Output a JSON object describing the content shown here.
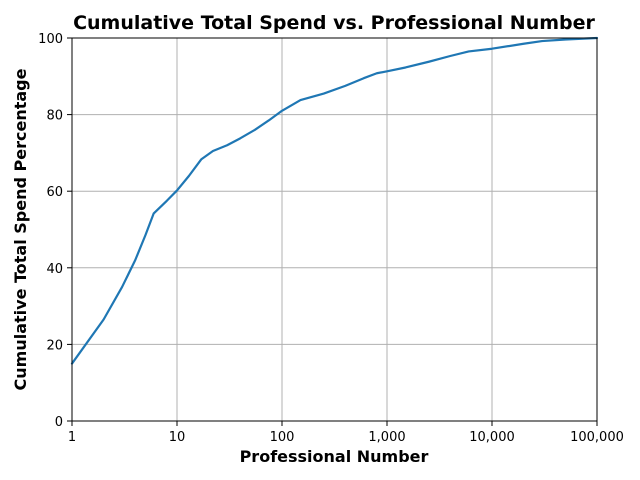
{
  "chart_data": {
    "type": "line",
    "title": "Cumulative Total Spend vs. Professional Number",
    "xlabel": "Professional Number",
    "ylabel": "Cumulative Total Spend Percentage",
    "x_scale": "log",
    "xlim": [
      1,
      100000
    ],
    "ylim": [
      0,
      100
    ],
    "grid": true,
    "x_ticks": [
      1,
      10,
      100,
      1000,
      10000,
      100000
    ],
    "x_tick_labels": [
      "1",
      "10",
      "100",
      "1,000",
      "10,000",
      "100,000"
    ],
    "y_ticks": [
      0,
      20,
      40,
      60,
      80,
      100
    ],
    "y_tick_labels": [
      "0",
      "20",
      "40",
      "60",
      "80",
      "100"
    ],
    "series": [
      {
        "color": "#1f77b4",
        "x": [
          1,
          2,
          3,
          4,
          5,
          6,
          8,
          10,
          13,
          17,
          22,
          30,
          40,
          55,
          75,
          100,
          150,
          250,
          400,
          600,
          800,
          1000,
          1500,
          2500,
          4000,
          6000,
          10000,
          20000,
          30000,
          50000,
          100000
        ],
        "y": [
          15.0,
          26.5,
          35.0,
          42.0,
          48.5,
          54.2,
          57.5,
          60.2,
          64.0,
          68.3,
          70.5,
          72.0,
          73.8,
          76.0,
          78.5,
          81.0,
          83.8,
          85.5,
          87.5,
          89.5,
          90.8,
          91.3,
          92.3,
          93.8,
          95.3,
          96.5,
          97.2,
          98.5,
          99.2,
          99.6,
          100.0
        ]
      }
    ]
  }
}
